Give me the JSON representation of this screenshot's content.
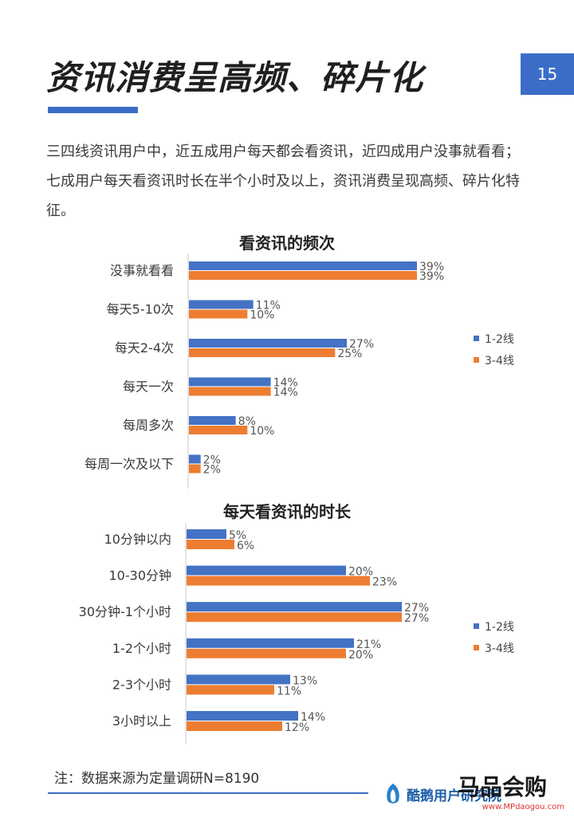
{
  "page": {
    "title": "资讯消费呈高频、碎片化",
    "page_number": "15",
    "intro": "三四线资讯用户中，近五成用户每天都会看资讯，近四成用户没事就看看；七成用户每天看资讯时长在半个小时及以上，资讯消费呈现高频、碎片化特征。",
    "note": "注：数据来源为定量调研N=8190",
    "brand": "酷鹅用户研究院",
    "corner_logo": "马品会购",
    "corner_url": "www.MPdaogou.com"
  },
  "colors": {
    "series1": "#4472c4",
    "series2": "#ed7d31",
    "accent": "#3b6dc8"
  },
  "chart_data": [
    {
      "type": "bar",
      "orientation": "horizontal",
      "title": "看资讯的频次",
      "categories": [
        "没事就看看",
        "每天5-10次",
        "每天2-4次",
        "每天一次",
        "每周多次",
        "每周一次及以下"
      ],
      "series": [
        {
          "name": "1-2线",
          "values": [
            39,
            11,
            27,
            14,
            8,
            2
          ],
          "labels": [
            "39%",
            "11%",
            "27%",
            "14%",
            "8%",
            "2%"
          ]
        },
        {
          "name": "3-4线",
          "values": [
            39,
            10,
            25,
            14,
            10,
            2
          ],
          "labels": [
            "39%",
            "10%",
            "25%",
            "14%",
            "10%",
            "2%"
          ]
        }
      ],
      "xlim": [
        0,
        45
      ],
      "legend": "right",
      "grid": false
    },
    {
      "type": "bar",
      "orientation": "horizontal",
      "title": "每天看资讯的时长",
      "categories": [
        "10分钟以内",
        "10-30分钟",
        "30分钟-1个小时",
        "1-2个小时",
        "2-3个小时",
        "3小时以上"
      ],
      "series": [
        {
          "name": "1-2线",
          "values": [
            5,
            20,
            27,
            21,
            13,
            14
          ],
          "labels": [
            "5%",
            "20%",
            "27%",
            "21%",
            "13%",
            "14%"
          ]
        },
        {
          "name": "3-4线",
          "values": [
            6,
            23,
            27,
            20,
            11,
            12
          ],
          "labels": [
            "6%",
            "23%",
            "27%",
            "20%",
            "11%",
            "12%"
          ]
        }
      ],
      "xlim": [
        0,
        33
      ],
      "legend": "right",
      "grid": false
    }
  ]
}
